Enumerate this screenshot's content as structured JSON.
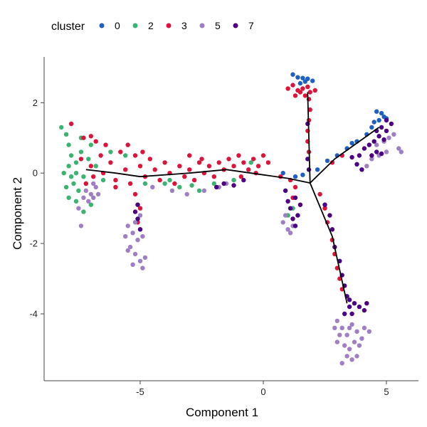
{
  "chart_data": {
    "type": "scatter",
    "xlabel": "Component 1",
    "ylabel": "Component 2",
    "xlim": [
      -8.9,
      6.3
    ],
    "ylim": [
      -5.9,
      3.3
    ],
    "xticks": [
      -5,
      0,
      5
    ],
    "yticks": [
      2,
      0,
      -2,
      -4
    ],
    "xtick_labels": [
      "-5",
      "0",
      "5"
    ],
    "ytick_labels": [
      "2",
      "0",
      "-2",
      "-4"
    ],
    "grid": false,
    "legend": {
      "title": "cluster",
      "position": "top-left",
      "entries": [
        {
          "label": "0",
          "color": "#1f5fbf"
        },
        {
          "label": "2",
          "color": "#3cb371"
        },
        {
          "label": "3",
          "color": "#dc143c"
        },
        {
          "label": "5",
          "color": "#9e7fc4"
        },
        {
          "label": "7",
          "color": "#4b0082"
        }
      ]
    },
    "trajectory": {
      "color": "#000000",
      "segments": [
        [
          [
            -7.2,
            0.1
          ],
          [
            -6.0,
            0.0
          ],
          [
            -5.0,
            -0.1
          ],
          [
            -3.0,
            0.0
          ],
          [
            -1.5,
            0.1
          ],
          [
            0.0,
            -0.05
          ],
          [
            1.0,
            -0.15
          ],
          [
            1.9,
            -0.28
          ]
        ],
        [
          [
            1.9,
            -0.28
          ],
          [
            1.8,
            2.3
          ]
        ],
        [
          [
            1.9,
            -0.28
          ],
          [
            2.9,
            0.4
          ],
          [
            4.7,
            1.3
          ]
        ],
        [
          [
            1.9,
            -0.28
          ],
          [
            2.8,
            -1.8
          ],
          [
            3.4,
            -3.7
          ]
        ]
      ]
    },
    "series": [
      {
        "name": "0",
        "color": "#1f5fbf",
        "points": [
          [
            1.4,
            2.72
          ],
          [
            1.6,
            2.7
          ],
          [
            1.8,
            2.68
          ],
          [
            2.0,
            2.62
          ],
          [
            1.2,
            2.8
          ],
          [
            1.5,
            2.55
          ],
          [
            1.7,
            2.6
          ],
          [
            4.6,
            1.75
          ],
          [
            4.8,
            1.7
          ],
          [
            4.9,
            1.6
          ],
          [
            4.7,
            1.5
          ],
          [
            4.5,
            1.45
          ],
          [
            5.0,
            1.55
          ],
          [
            4.4,
            1.3
          ],
          [
            4.2,
            1.1
          ],
          [
            3.8,
            0.9
          ],
          [
            3.6,
            0.85
          ],
          [
            3.4,
            0.7
          ],
          [
            3.0,
            0.5
          ],
          [
            2.6,
            0.35
          ],
          [
            2.2,
            0.1
          ],
          [
            1.6,
            -0.05
          ],
          [
            1.3,
            -0.1
          ],
          [
            0.8,
            0.0
          ]
        ]
      },
      {
        "name": "2",
        "color": "#3cb371",
        "points": [
          [
            -8.2,
            1.3
          ],
          [
            -8.0,
            1.1
          ],
          [
            -7.9,
            0.8
          ],
          [
            -7.8,
            0.5
          ],
          [
            -7.6,
            0.3
          ],
          [
            -7.9,
            0.2
          ],
          [
            -7.4,
            0.6
          ],
          [
            -7.6,
            0.0
          ],
          [
            -7.3,
            -0.1
          ],
          [
            -7.7,
            -0.3
          ],
          [
            -8.0,
            -0.4
          ],
          [
            -7.5,
            -0.5
          ],
          [
            -7.1,
            0.4
          ],
          [
            -8.1,
            0.0
          ],
          [
            -7.8,
            -0.1
          ],
          [
            -7.2,
            -0.3
          ],
          [
            -7.9,
            -0.7
          ],
          [
            -7.6,
            -0.8
          ],
          [
            -7.3,
            -1.1
          ],
          [
            -7.0,
            -0.9
          ],
          [
            -6.8,
            0.2
          ],
          [
            -6.5,
            -0.2
          ],
          [
            -7.4,
            1.0
          ],
          [
            -7.0,
            0.8
          ],
          [
            -6.2,
            0.6
          ],
          [
            -5.6,
            0.5
          ],
          [
            -4.8,
            -0.3
          ],
          [
            -4.0,
            -0.3
          ],
          [
            -3.4,
            -0.4
          ],
          [
            -2.6,
            -0.5
          ],
          [
            -2.0,
            -0.3
          ],
          [
            -1.2,
            -0.2
          ],
          [
            -3.8,
            -0.2
          ],
          [
            -2.9,
            -0.35
          ],
          [
            -0.5,
            0.3
          ],
          [
            1.0,
            -1.2
          ],
          [
            1.2,
            -1.0
          ]
        ]
      },
      {
        "name": "3",
        "color": "#dc143c",
        "points": [
          [
            -7.8,
            1.4
          ],
          [
            -7.3,
            1.0
          ],
          [
            -7.0,
            1.05
          ],
          [
            -6.8,
            0.9
          ],
          [
            -7.4,
            0.4
          ],
          [
            -7.0,
            0.2
          ],
          [
            -6.6,
            0.5
          ],
          [
            -6.9,
            -0.1
          ],
          [
            -7.2,
            -0.3
          ],
          [
            -6.5,
            0.0
          ],
          [
            -6.2,
            0.3
          ],
          [
            -6.0,
            -0.2
          ],
          [
            -5.8,
            0.6
          ],
          [
            -5.6,
            0.1
          ],
          [
            -5.4,
            -0.3
          ],
          [
            -5.2,
            0.5
          ],
          [
            -5.0,
            0.2
          ],
          [
            -4.8,
            -0.1
          ],
          [
            -4.6,
            0.4
          ],
          [
            -4.4,
            0.1
          ],
          [
            -4.2,
            -0.2
          ],
          [
            -4.0,
            0.3
          ],
          [
            -3.8,
            0.0
          ],
          [
            -3.6,
            -0.3
          ],
          [
            -3.4,
            0.2
          ],
          [
            -3.2,
            -0.1
          ],
          [
            -3.0,
            0.1
          ],
          [
            -2.8,
            -0.2
          ],
          [
            -2.6,
            0.3
          ],
          [
            -2.4,
            0.0
          ],
          [
            -2.2,
            0.2
          ],
          [
            -2.0,
            -0.1
          ],
          [
            -1.8,
            0.3
          ],
          [
            -1.6,
            0.1
          ],
          [
            -1.4,
            0.4
          ],
          [
            -1.2,
            0.2
          ],
          [
            -1.0,
            0.5
          ],
          [
            -0.8,
            0.3
          ],
          [
            -0.6,
            0.1
          ],
          [
            -0.4,
            0.4
          ],
          [
            -0.2,
            0.2
          ],
          [
            0.0,
            0.5
          ],
          [
            0.2,
            0.3
          ],
          [
            -0.3,
            0.0
          ],
          [
            -0.9,
            -0.1
          ],
          [
            -6.4,
            0.8
          ],
          [
            -5.5,
            0.8
          ],
          [
            -4.9,
            0.6
          ],
          [
            -6.0,
            -0.4
          ],
          [
            -5.2,
            -0.6
          ],
          [
            -5.0,
            -1.0
          ],
          [
            -5.1,
            -1.4
          ],
          [
            -3.0,
            0.5
          ],
          [
            -2.5,
            0.4
          ],
          [
            1.2,
            2.5
          ],
          [
            1.4,
            2.35
          ],
          [
            1.5,
            2.3
          ],
          [
            1.6,
            2.4
          ],
          [
            1.8,
            2.45
          ],
          [
            1.9,
            2.3
          ],
          [
            1.7,
            2.2
          ],
          [
            1.3,
            2.2
          ],
          [
            1.0,
            2.4
          ],
          [
            2.1,
            2.35
          ],
          [
            1.85,
            2.1
          ],
          [
            1.9,
            1.8
          ],
          [
            1.85,
            1.5
          ],
          [
            1.8,
            1.2
          ],
          [
            1.8,
            0.9
          ],
          [
            1.85,
            0.6
          ],
          [
            2.8,
            0.3
          ],
          [
            3.2,
            0.5
          ],
          [
            1.3,
            -0.4
          ],
          [
            1.2,
            -0.7
          ],
          [
            1.1,
            -0.2
          ],
          [
            0.7,
            -0.1
          ],
          [
            2.3,
            -0.6
          ],
          [
            2.5,
            -1.0
          ],
          [
            2.6,
            -1.4
          ],
          [
            2.8,
            -1.9
          ],
          [
            2.9,
            -2.3
          ],
          [
            3.0,
            -2.7
          ],
          [
            3.1,
            -3.0
          ],
          [
            3.2,
            -3.3
          ]
        ]
      },
      {
        "name": "5",
        "color": "#9e7fc4",
        "points": [
          [
            -7.2,
            -0.5
          ],
          [
            -7.0,
            -0.6
          ],
          [
            -6.8,
            -0.4
          ],
          [
            -6.9,
            -0.7
          ],
          [
            -7.1,
            -0.8
          ],
          [
            -6.7,
            -0.6
          ],
          [
            -7.3,
            -0.7
          ],
          [
            -7.5,
            -1.0
          ],
          [
            -7.4,
            -1.5
          ],
          [
            -6.9,
            -0.3
          ],
          [
            -5.0,
            -1.2
          ],
          [
            -5.2,
            -1.4
          ],
          [
            -5.5,
            -1.5
          ],
          [
            -5.3,
            -1.7
          ],
          [
            -5.1,
            -1.9
          ],
          [
            -5.4,
            -2.1
          ],
          [
            -5.2,
            -2.3
          ],
          [
            -5.0,
            -2.5
          ],
          [
            -4.9,
            -2.7
          ],
          [
            -5.5,
            -2.2
          ],
          [
            -4.8,
            -2.4
          ],
          [
            -5.6,
            -1.8
          ],
          [
            -5.0,
            -1.6
          ],
          [
            -5.3,
            -2.6
          ],
          [
            -4.9,
            -1.8
          ],
          [
            -4.5,
            -0.4
          ],
          [
            -3.7,
            -0.5
          ],
          [
            -3.1,
            -0.6
          ],
          [
            -2.4,
            -0.5
          ],
          [
            -1.8,
            -0.4
          ],
          [
            -1.5,
            -0.3
          ],
          [
            0.8,
            -1.4
          ],
          [
            1.0,
            -1.6
          ],
          [
            1.2,
            -1.5
          ],
          [
            0.9,
            -1.2
          ],
          [
            1.1,
            -1.7
          ],
          [
            3.0,
            -4.2
          ],
          [
            3.2,
            -4.4
          ],
          [
            3.4,
            -4.6
          ],
          [
            3.6,
            -4.3
          ],
          [
            3.8,
            -4.5
          ],
          [
            4.0,
            -4.7
          ],
          [
            3.3,
            -4.9
          ],
          [
            3.5,
            -5.0
          ],
          [
            3.7,
            -4.8
          ],
          [
            3.9,
            -4.9
          ],
          [
            3.1,
            -4.6
          ],
          [
            3.4,
            -5.2
          ],
          [
            3.6,
            -5.3
          ],
          [
            3.2,
            -5.4
          ],
          [
            3.8,
            -5.2
          ],
          [
            4.1,
            -4.4
          ],
          [
            3.0,
            -4.8
          ],
          [
            3.5,
            -4.4
          ],
          [
            4.3,
            -4.5
          ],
          [
            2.9,
            -4.4
          ],
          [
            4.6,
            0.8
          ],
          [
            4.9,
            0.9
          ],
          [
            5.1,
            1.0
          ],
          [
            5.3,
            1.1
          ],
          [
            5.5,
            0.7
          ],
          [
            4.7,
            0.5
          ],
          [
            5.0,
            0.6
          ],
          [
            4.4,
            0.4
          ],
          [
            4.2,
            0.2
          ],
          [
            5.6,
            0.6
          ]
        ]
      },
      {
        "name": "7",
        "color": "#4b0082",
        "points": [
          [
            -5.1,
            -0.9
          ],
          [
            -5.2,
            -1.1
          ],
          [
            -5.1,
            -1.3
          ],
          [
            -5.0,
            -1.6
          ],
          [
            -1.6,
            -0.3
          ],
          [
            -1.2,
            -0.35
          ],
          [
            -0.8,
            -0.2
          ],
          [
            -1.9,
            -0.4
          ],
          [
            0.9,
            -0.5
          ],
          [
            1.0,
            -0.8
          ],
          [
            1.1,
            -1.0
          ],
          [
            1.2,
            -1.3
          ],
          [
            1.3,
            -1.5
          ],
          [
            1.4,
            -1.2
          ],
          [
            1.5,
            -0.9
          ],
          [
            1.3,
            -0.7
          ],
          [
            4.6,
            1.2
          ],
          [
            4.8,
            1.3
          ],
          [
            5.0,
            1.2
          ],
          [
            4.7,
            1.05
          ],
          [
            4.9,
            0.95
          ],
          [
            4.5,
            0.9
          ],
          [
            4.3,
            0.8
          ],
          [
            4.1,
            0.7
          ],
          [
            4.6,
            0.6
          ],
          [
            4.8,
            0.55
          ],
          [
            4.4,
            0.5
          ],
          [
            3.9,
            0.5
          ],
          [
            3.6,
            0.45
          ],
          [
            3.8,
            0.25
          ],
          [
            4.0,
            0.1
          ],
          [
            5.2,
            1.4
          ],
          [
            5.0,
            1.5
          ],
          [
            1.8,
            1.4
          ],
          [
            1.8,
            0.4
          ],
          [
            1.85,
            0.1
          ],
          [
            2.5,
            -0.9
          ],
          [
            2.7,
            -1.2
          ],
          [
            2.8,
            -1.6
          ],
          [
            2.9,
            -2.1
          ],
          [
            3.1,
            -2.5
          ],
          [
            3.2,
            -2.9
          ],
          [
            3.3,
            -3.2
          ],
          [
            3.4,
            -3.5
          ],
          [
            3.5,
            -3.8
          ],
          [
            3.7,
            -3.7
          ],
          [
            3.9,
            -3.8
          ],
          [
            4.1,
            -3.9
          ],
          [
            3.6,
            -4.0
          ],
          [
            3.3,
            -4.0
          ],
          [
            3.5,
            -3.6
          ],
          [
            4.2,
            -3.7
          ]
        ]
      }
    ]
  }
}
